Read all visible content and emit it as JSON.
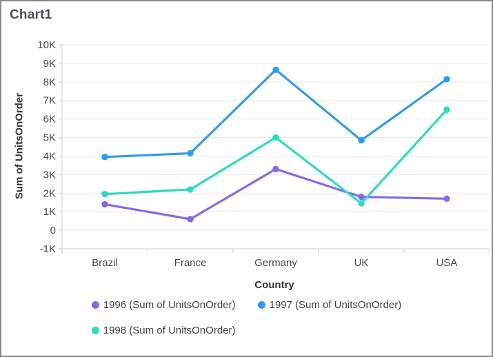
{
  "title": "Chart1",
  "chart_data": {
    "type": "line",
    "title": "Chart1",
    "xlabel": "Country",
    "ylabel": "Sum of UnitsOnOrder",
    "categories": [
      "Brazil",
      "France",
      "Germany",
      "UK",
      "USA"
    ],
    "series": [
      {
        "name": "1996 (Sum of UnitsOnOrder)",
        "color": "#8569e8",
        "values": [
          1400,
          600,
          3300,
          1800,
          1700
        ]
      },
      {
        "name": "1997 (Sum of UnitsOnOrder)",
        "color": "#2f9bf3",
        "values": [
          3950,
          4150,
          8650,
          4850,
          8150
        ]
      },
      {
        "name": "1998 (Sum of UnitsOnOrder)",
        "color": "#2bdcbd",
        "values": [
          1950,
          2200,
          5000,
          1450,
          6500
        ]
      }
    ],
    "ylim": [
      -1000,
      10000
    ],
    "ytick_step": 1000,
    "ytick_labels": [
      "-1K",
      "0",
      "1K",
      "2K",
      "3K",
      "4K",
      "5K",
      "6K",
      "7K",
      "8K",
      "9K",
      "10K"
    ],
    "grid": "horizontal",
    "legend_position": "bottom",
    "marker_shape": "circle",
    "style": {
      "grid_color": "#e8e8e8",
      "axis_color": "#d2d2d4",
      "tick_color": "#c9c9cc",
      "text_color": "#45474e",
      "title_color": "#4b4d54",
      "frame_border_color": "#86878c",
      "background": "#ffffff"
    }
  }
}
